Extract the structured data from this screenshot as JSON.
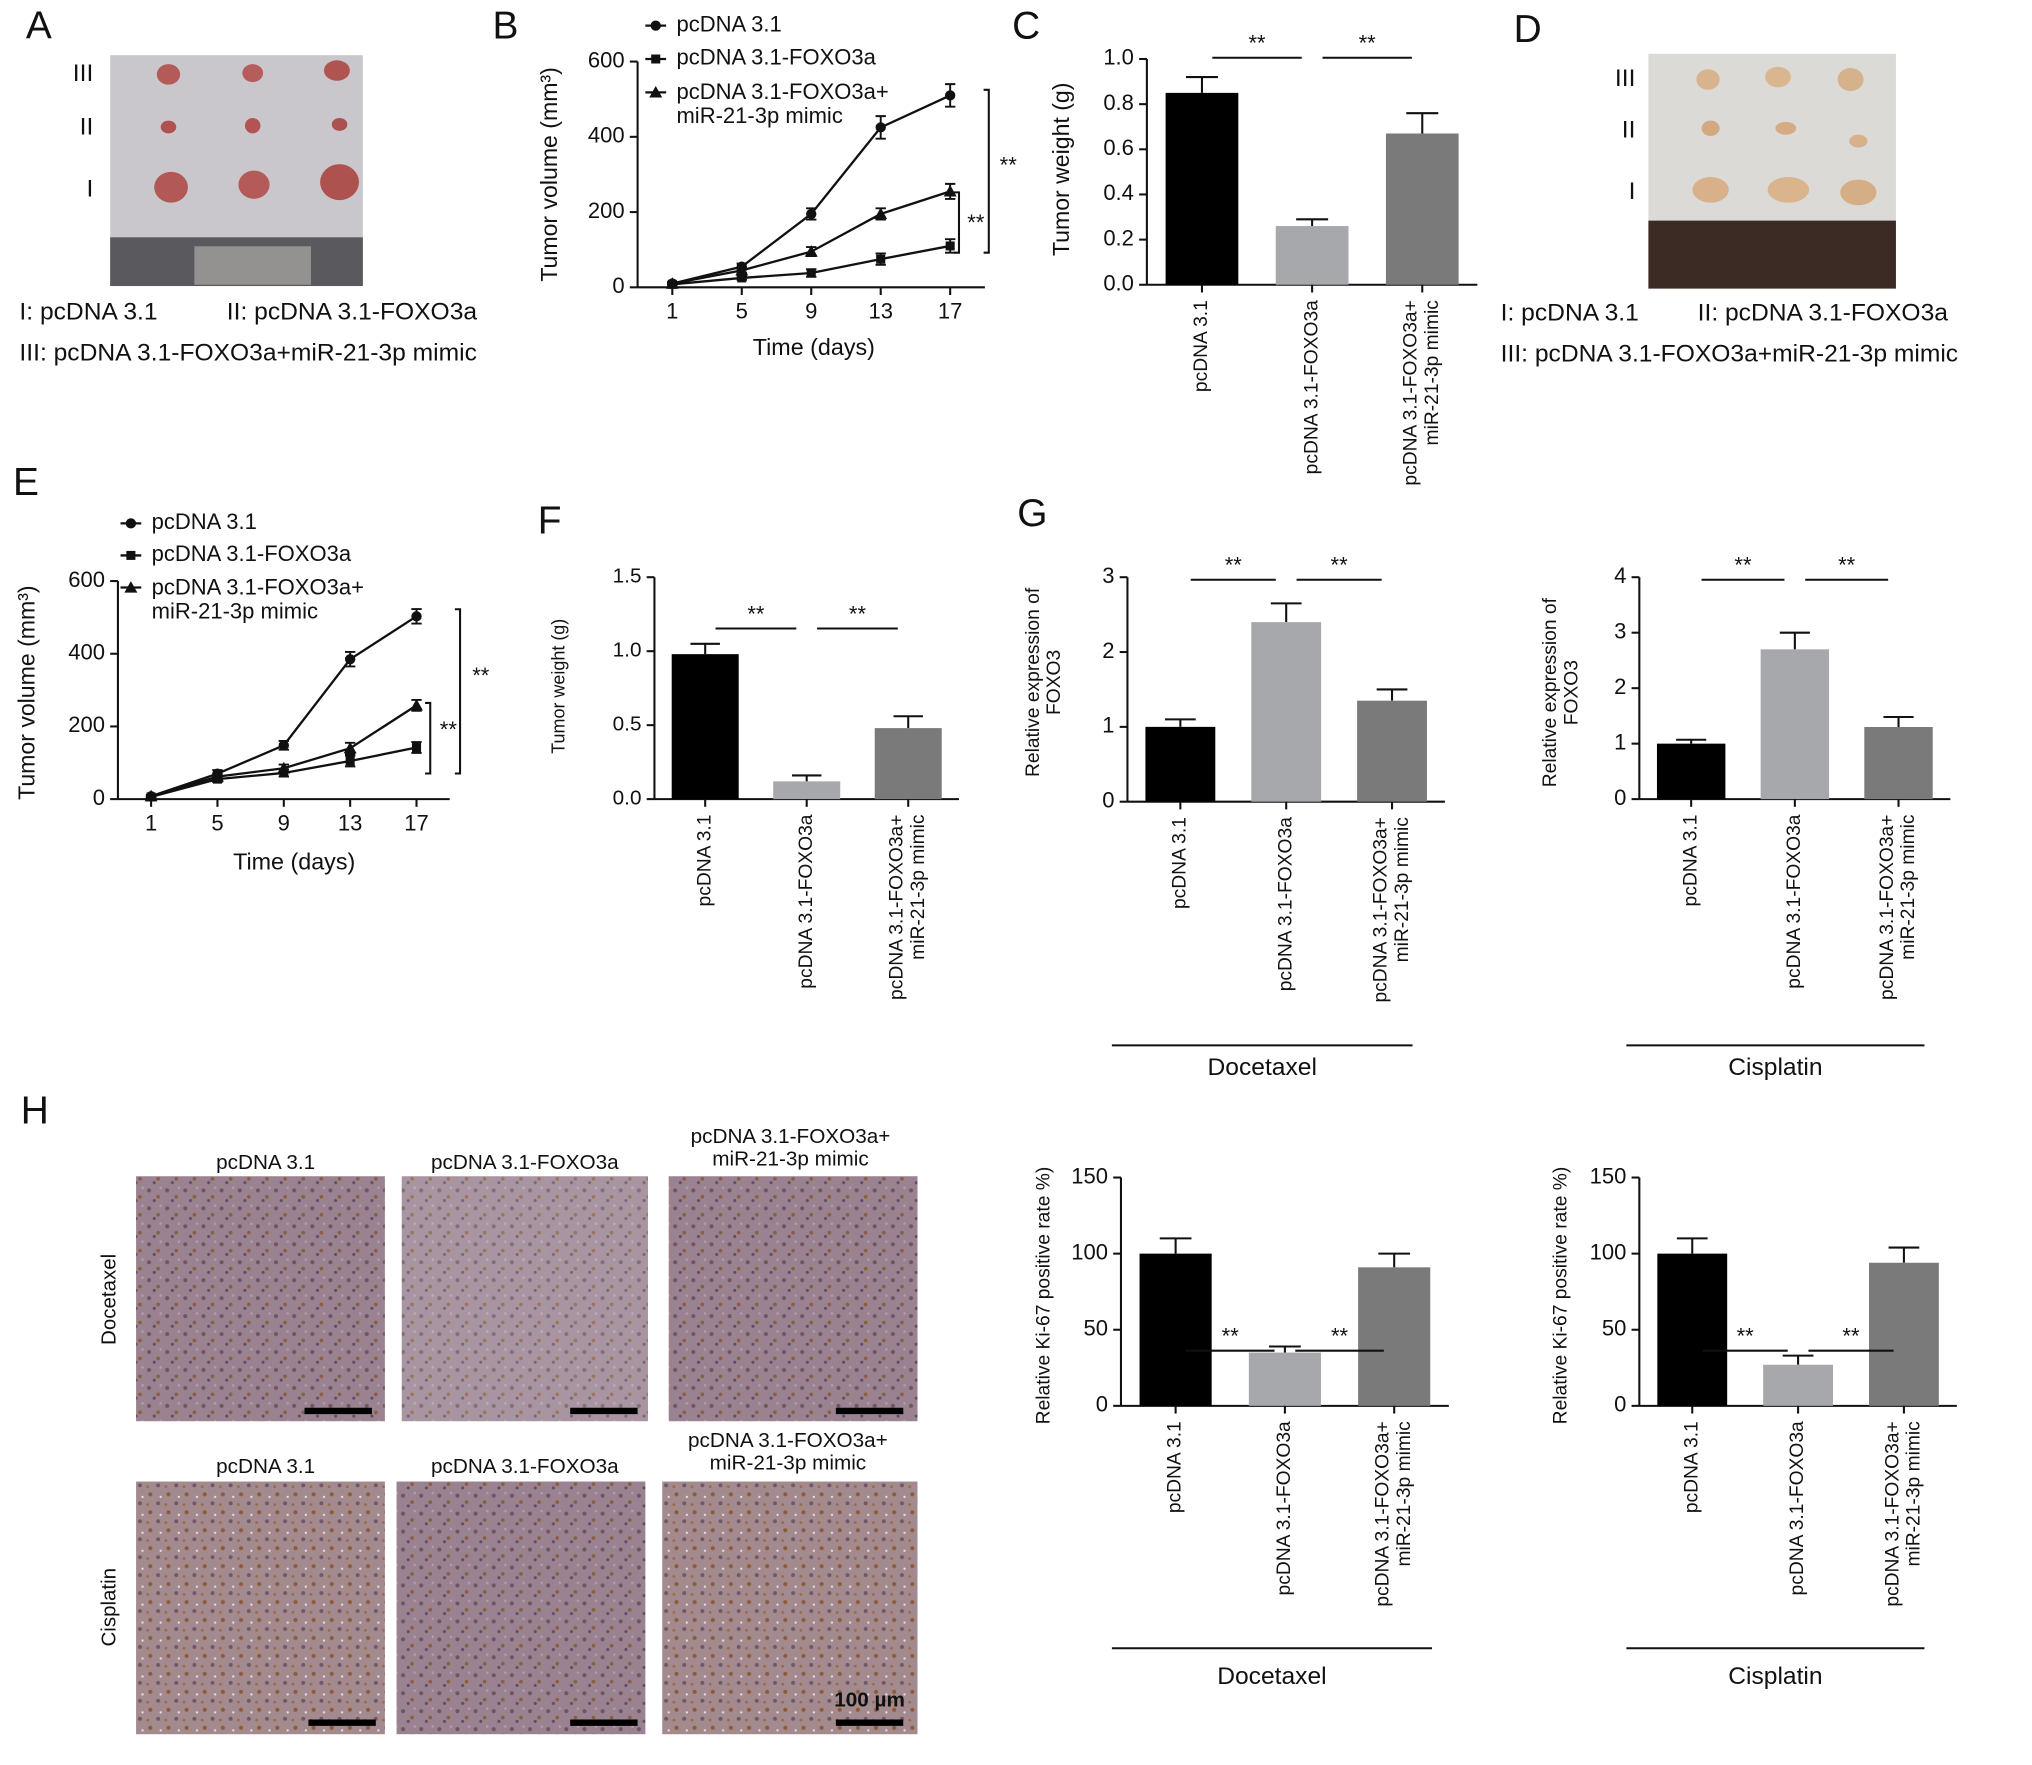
{
  "panel_letters": [
    "A",
    "B",
    "C",
    "D",
    "E",
    "F",
    "G",
    "H"
  ],
  "photos": {
    "A": {
      "rows": [
        "III",
        "II",
        "I"
      ],
      "legend": [
        "I: pcDNA 3.1",
        "II: pcDNA 3.1-FOXO3a",
        "III: pcDNA 3.1-FOXO3a+miR-21-3p mimic"
      ]
    },
    "D": {
      "rows": [
        "III",
        "II",
        "I"
      ],
      "legend": [
        "I: pcDNA 3.1",
        "II: pcDNA 3.1-FOXO3a",
        "III: pcDNA 3.1-FOXO3a+miR-21-3p mimic"
      ]
    },
    "H": {
      "titles_top": [
        "pcDNA 3.1",
        "pcDNA 3.1-FOXO3a",
        "pcDNA 3.1-FOXO3a+\nmiR-21-3p mimic"
      ],
      "titles_bottom": [
        "pcDNA 3.1",
        "pcDNA 3.1-FOXO3a",
        "pcDNA 3.1-FOXO3a+\nmiR-21-3p mimic"
      ],
      "rows": [
        "Docetaxel",
        "Cisplatin"
      ],
      "scale_bar": "100 µm"
    }
  },
  "chart_data": [
    {
      "type": "line",
      "ylabel": "Tumor volume (mm³)",
      "xlabel": "Time (days)",
      "x": [
        1,
        5,
        9,
        13,
        17
      ],
      "xlim": [
        -1,
        19
      ],
      "xticks": [
        1,
        5,
        9,
        13,
        17
      ],
      "ylim": [
        0,
        600
      ],
      "yticks": [
        0,
        200,
        400,
        600
      ],
      "series": [
        {
          "name": "pcDNA 3.1",
          "marker": "circle",
          "color": "#111111",
          "values": [
            10,
            55,
            195,
            425,
            510
          ],
          "errors": [
            4,
            8,
            15,
            30,
            30
          ]
        },
        {
          "name": "pcDNA 3.1-FOXO3a",
          "marker": "square",
          "color": "#111111",
          "values": [
            8,
            25,
            38,
            75,
            110
          ],
          "errors": [
            3,
            5,
            10,
            15,
            18
          ]
        },
        {
          "name": "pcDNA 3.1-FOXO3a+\nmiR-21-3p mimic",
          "marker": "triangle",
          "color": "#111111",
          "values": [
            10,
            45,
            95,
            195,
            255
          ],
          "errors": [
            3,
            6,
            12,
            15,
            20
          ]
        }
      ],
      "annotations": [
        "**",
        "**"
      ]
    },
    {
      "type": "bar",
      "ylabel": "Tumor weight (g)",
      "categories": [
        "pcDNA 3.1",
        "pcDNA 3.1-FOXO3a",
        "pcDNA 3.1-FOXO3a+\nmiR-21-3p mimic"
      ],
      "values": [
        0.85,
        0.26,
        0.67
      ],
      "errors": [
        0.07,
        0.03,
        0.09
      ],
      "colors": [
        "#000000",
        "#a7a8ac",
        "#7a7a7a"
      ],
      "ylim": [
        0,
        1
      ],
      "yticks": [
        {
          "value": 0,
          "label": "0.0"
        },
        0.2,
        0.4,
        0.6,
        0.8,
        {
          "value": 1,
          "label": "1.0"
        }
      ],
      "annotations": [
        "**",
        "**"
      ]
    },
    {
      "type": "line",
      "ylabel": "Tumor volume (mm³)",
      "xlabel": "Time (days)",
      "x": [
        1,
        5,
        9,
        13,
        17
      ],
      "xlim": [
        -1,
        19
      ],
      "xticks": [
        1,
        5,
        9,
        13,
        17
      ],
      "ylim": [
        0,
        600
      ],
      "yticks": [
        0,
        200,
        400,
        600
      ],
      "series": [
        {
          "name": "pcDNA 3.1",
          "marker": "circle",
          "color": "#111111",
          "values": [
            8,
            70,
            148,
            385,
            503
          ],
          "errors": [
            3,
            10,
            12,
            20,
            20
          ]
        },
        {
          "name": "pcDNA 3.1-FOXO3a",
          "marker": "square",
          "color": "#111111",
          "values": [
            6,
            55,
            72,
            105,
            142
          ],
          "errors": [
            3,
            8,
            10,
            15,
            15
          ]
        },
        {
          "name": "pcDNA 3.1-FOXO3a+\nmiR-21-3p mimic",
          "marker": "triangle",
          "color": "#111111",
          "values": [
            8,
            62,
            85,
            140,
            258
          ],
          "errors": [
            3,
            8,
            10,
            15,
            15
          ]
        }
      ],
      "annotations": [
        "**",
        "**"
      ]
    },
    {
      "type": "bar",
      "ylabel": "Tumor weight (g)",
      "categories": [
        "pcDNA 3.1",
        "pcDNA 3.1-FOXO3a",
        "pcDNA 3.1-FOXO3a+\nmiR-21-3p mimic"
      ],
      "values": [
        0.98,
        0.12,
        0.48
      ],
      "errors": [
        0.07,
        0.04,
        0.08
      ],
      "colors": [
        "#000000",
        "#a7a8ac",
        "#7a7a7a"
      ],
      "ylim": [
        0,
        1.5
      ],
      "yticks": [
        {
          "value": 0,
          "label": "0.0"
        },
        0.5,
        {
          "value": 1,
          "label": "1.0"
        },
        1.5
      ],
      "annotations": [
        "**",
        "**"
      ]
    },
    {
      "type": "bar",
      "ylabel": "Relative expression of\nFOXO3",
      "group_label": "Docetaxel",
      "categories": [
        "pcDNA 3.1",
        "pcDNA 3.1-FOXO3a",
        "pcDNA 3.1-FOXO3a+\nmiR-21-3p mimic"
      ],
      "values": [
        1.0,
        2.4,
        1.35
      ],
      "errors": [
        0.1,
        0.25,
        0.15
      ],
      "colors": [
        "#000000",
        "#a7a8ac",
        "#7a7a7a"
      ],
      "ylim": [
        0,
        3
      ],
      "yticks": [
        0,
        1,
        2,
        3
      ],
      "annotations": [
        "**",
        "**"
      ]
    },
    {
      "type": "bar",
      "ylabel": "Relative expression of\nFOXO3",
      "group_label": "Cisplatin",
      "categories": [
        "pcDNA 3.1",
        "pcDNA 3.1-FOXO3a",
        "pcDNA 3.1-FOXO3a+\nmiR-21-3p mimic"
      ],
      "values": [
        1.0,
        2.7,
        1.3
      ],
      "errors": [
        0.07,
        0.3,
        0.18
      ],
      "colors": [
        "#000000",
        "#a7a8ac",
        "#7a7a7a"
      ],
      "ylim": [
        0,
        4
      ],
      "yticks": [
        0,
        1,
        2,
        3,
        4
      ],
      "annotations": [
        "**",
        "**"
      ]
    },
    {
      "type": "bar",
      "ylabel": "Relative Ki-67 positive rate %)",
      "group_label": "Docetaxel",
      "categories": [
        "pcDNA 3.1",
        "pcDNA 3.1-FOXO3a",
        "pcDNA 3.1-FOXO3a+\nmiR-21-3p mimic"
      ],
      "values": [
        100,
        35,
        91
      ],
      "errors": [
        10,
        4,
        9
      ],
      "colors": [
        "#000000",
        "#a7a8ac",
        "#7a7a7a"
      ],
      "ylim": [
        0,
        150
      ],
      "yticks": [
        0,
        50,
        100,
        150
      ],
      "annotations": [
        "**",
        "**"
      ]
    },
    {
      "type": "bar",
      "ylabel": "Relative Ki-67 positive rate %)",
      "group_label": "Cisplatin",
      "categories": [
        "pcDNA 3.1",
        "pcDNA 3.1-FOXO3a",
        "pcDNA 3.1-FOXO3a+\nmiR-21-3p mimic"
      ],
      "values": [
        100,
        27,
        94
      ],
      "errors": [
        10,
        6,
        10
      ],
      "colors": [
        "#000000",
        "#a7a8ac",
        "#7a7a7a"
      ],
      "ylim": [
        0,
        150
      ],
      "yticks": [
        0,
        50,
        100,
        150
      ],
      "annotations": [
        "**",
        "**"
      ]
    }
  ]
}
